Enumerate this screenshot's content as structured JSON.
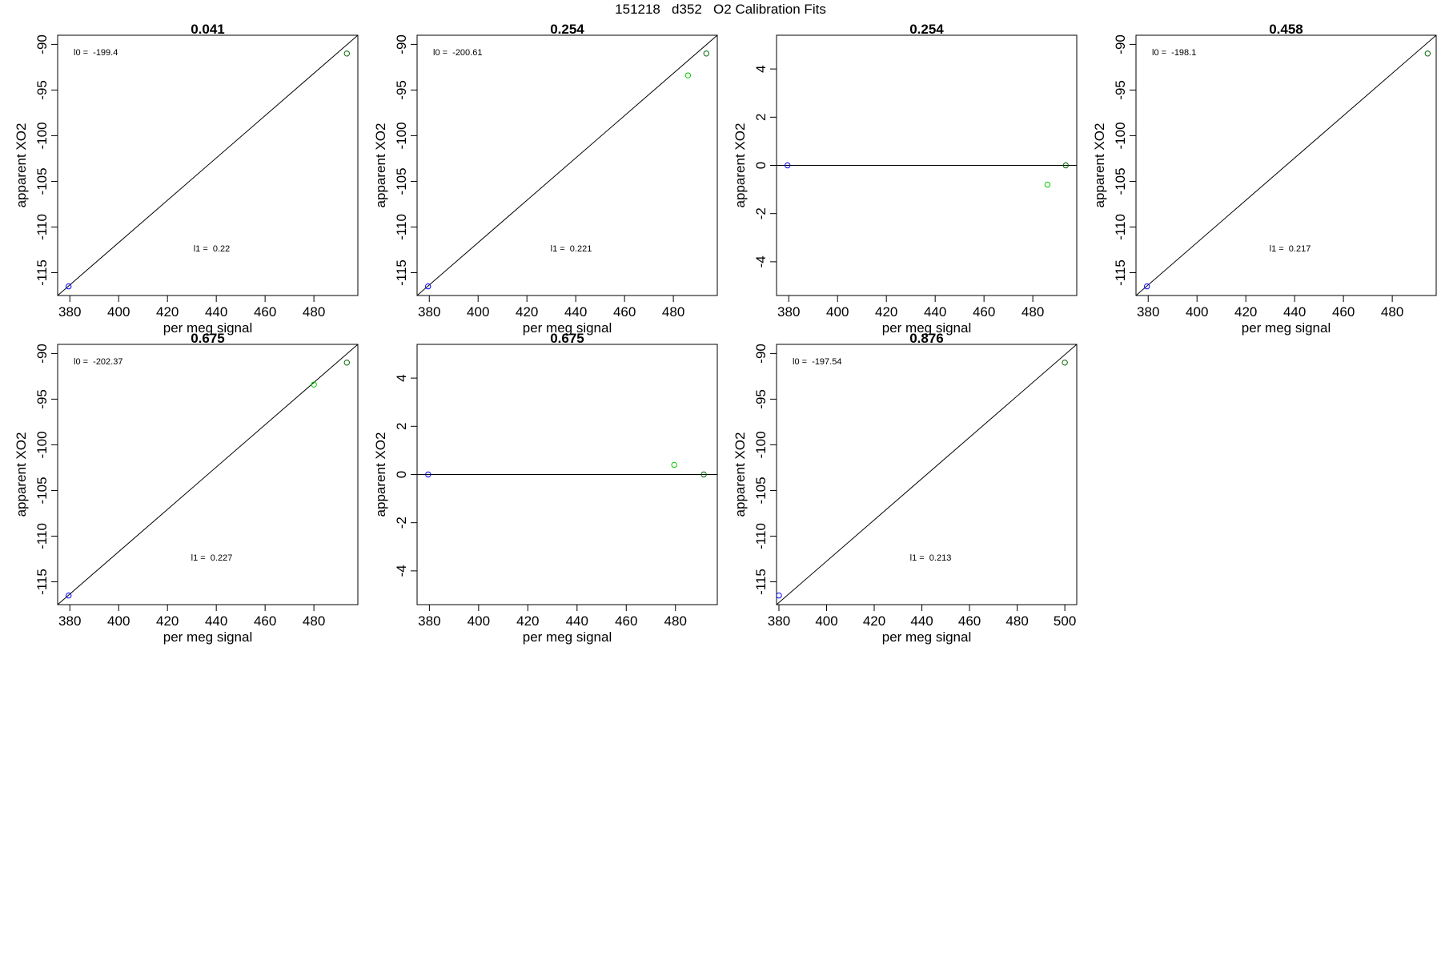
{
  "page_title": "151218   d352   O2 Calibration Fits",
  "colors": {
    "blue_point": "#0000ff",
    "green_point": "#00cc00",
    "dark_green_point": "#006400",
    "line": "#000000"
  },
  "chart_data": [
    {
      "type": "scatter",
      "title": "0.041",
      "xlabel": "per meg signal",
      "ylabel": "apparent XO2",
      "xlim": [
        375,
        498
      ],
      "ylim": [
        -117.5,
        -89
      ],
      "xticks": [
        380,
        400,
        420,
        440,
        460,
        480
      ],
      "yticks": [
        -90,
        -95,
        -100,
        -105,
        -110,
        -115
      ],
      "annotations": [
        {
          "text": "l0 =  -199.4",
          "at": "top-left"
        },
        {
          "text": "l1 =  0.22",
          "at": "bottom-center"
        }
      ],
      "fit_line": {
        "x": [
          375,
          498
        ],
        "y": [
          -117.5,
          -89
        ]
      },
      "points": [
        {
          "x": 379.5,
          "y": -116.5,
          "color": "blue"
        },
        {
          "x": 493.5,
          "y": -91.0,
          "color": "dark_green"
        }
      ]
    },
    {
      "type": "scatter",
      "title": "0.254",
      "xlabel": "per meg signal",
      "ylabel": "apparent XO2",
      "xlim": [
        375,
        498
      ],
      "ylim": [
        -117.5,
        -89
      ],
      "xticks": [
        380,
        400,
        420,
        440,
        460,
        480
      ],
      "yticks": [
        -90,
        -95,
        -100,
        -105,
        -110,
        -115
      ],
      "annotations": [
        {
          "text": "l0 =  -200.61",
          "at": "top-left"
        },
        {
          "text": "l1 =  0.221",
          "at": "bottom-center"
        }
      ],
      "fit_line": {
        "x": [
          375,
          498
        ],
        "y": [
          -117.5,
          -89
        ]
      },
      "points": [
        {
          "x": 379.5,
          "y": -116.5,
          "color": "blue"
        },
        {
          "x": 486.0,
          "y": -93.4,
          "color": "green"
        },
        {
          "x": 493.5,
          "y": -91.0,
          "color": "dark_green"
        }
      ]
    },
    {
      "type": "scatter",
      "title": "0.254",
      "xlabel": "per meg signal",
      "ylabel": "apparent XO2",
      "xlim": [
        375,
        498
      ],
      "ylim": [
        -5.4,
        5.4
      ],
      "xticks": [
        380,
        400,
        420,
        440,
        460,
        480
      ],
      "yticks": [
        4,
        2,
        0,
        -2,
        -4
      ],
      "annotations": [],
      "fit_line": {
        "x": [
          375,
          498
        ],
        "y": [
          0,
          0
        ]
      },
      "points": [
        {
          "x": 379.5,
          "y": 0.0,
          "color": "blue"
        },
        {
          "x": 486.0,
          "y": -0.8,
          "color": "green"
        },
        {
          "x": 493.5,
          "y": 0.0,
          "color": "dark_green"
        }
      ]
    },
    {
      "type": "scatter",
      "title": "0.458",
      "xlabel": "per meg signal",
      "ylabel": "apparent XO2",
      "xlim": [
        375,
        498
      ],
      "ylim": [
        -117.5,
        -89
      ],
      "xticks": [
        380,
        400,
        420,
        440,
        460,
        480
      ],
      "yticks": [
        -90,
        -95,
        -100,
        -105,
        -110,
        -115
      ],
      "annotations": [
        {
          "text": "l0 =  -198.1",
          "at": "top-left"
        },
        {
          "text": "l1 =  0.217",
          "at": "bottom-center"
        }
      ],
      "fit_line": {
        "x": [
          375,
          498
        ],
        "y": [
          -117.5,
          -89
        ]
      },
      "points": [
        {
          "x": 379.5,
          "y": -116.5,
          "color": "blue"
        },
        {
          "x": 494.5,
          "y": -91.0,
          "color": "dark_green"
        }
      ]
    },
    {
      "type": "scatter",
      "title": "0.675",
      "xlabel": "per meg signal",
      "ylabel": "apparent XO2",
      "xlim": [
        375,
        498
      ],
      "ylim": [
        -117.5,
        -89
      ],
      "xticks": [
        380,
        400,
        420,
        440,
        460,
        480
      ],
      "yticks": [
        -90,
        -95,
        -100,
        -105,
        -110,
        -115
      ],
      "annotations": [
        {
          "text": "l0 =  -202.37",
          "at": "top-left"
        },
        {
          "text": "l1 =  0.227",
          "at": "bottom-center"
        }
      ],
      "fit_line": {
        "x": [
          375,
          498
        ],
        "y": [
          -117.5,
          -89
        ]
      },
      "points": [
        {
          "x": 379.5,
          "y": -116.5,
          "color": "blue"
        },
        {
          "x": 480.0,
          "y": -93.4,
          "color": "green"
        },
        {
          "x": 493.5,
          "y": -91.0,
          "color": "dark_green"
        }
      ]
    },
    {
      "type": "scatter",
      "title": "0.675",
      "xlabel": "per meg signal",
      "ylabel": "apparent XO2",
      "xlim": [
        375,
        497
      ],
      "ylim": [
        -5.4,
        5.4
      ],
      "xticks": [
        380,
        400,
        420,
        440,
        460,
        480
      ],
      "yticks": [
        4,
        2,
        0,
        -2,
        -4
      ],
      "annotations": [],
      "fit_line": {
        "x": [
          375,
          497
        ],
        "y": [
          0,
          0
        ]
      },
      "points": [
        {
          "x": 379.5,
          "y": 0.0,
          "color": "blue"
        },
        {
          "x": 479.5,
          "y": 0.4,
          "color": "green"
        },
        {
          "x": 491.5,
          "y": 0.0,
          "color": "dark_green"
        }
      ]
    },
    {
      "type": "scatter",
      "title": "0.876",
      "xlabel": "per meg signal",
      "ylabel": "apparent XO2",
      "xlim": [
        379,
        505
      ],
      "ylim": [
        -117.5,
        -89
      ],
      "xticks": [
        380,
        400,
        420,
        440,
        460,
        480,
        500
      ],
      "yticks": [
        -90,
        -95,
        -100,
        -105,
        -110,
        -115
      ],
      "annotations": [
        {
          "text": "l0 =  -197.54",
          "at": "top-left"
        },
        {
          "text": "l1 =  0.213",
          "at": "bottom-center"
        }
      ],
      "fit_line": {
        "x": [
          379,
          505
        ],
        "y": [
          -117.5,
          -89
        ]
      },
      "points": [
        {
          "x": 380.0,
          "y": -116.5,
          "color": "blue"
        },
        {
          "x": 500.0,
          "y": -91.0,
          "color": "dark_green"
        }
      ]
    }
  ]
}
